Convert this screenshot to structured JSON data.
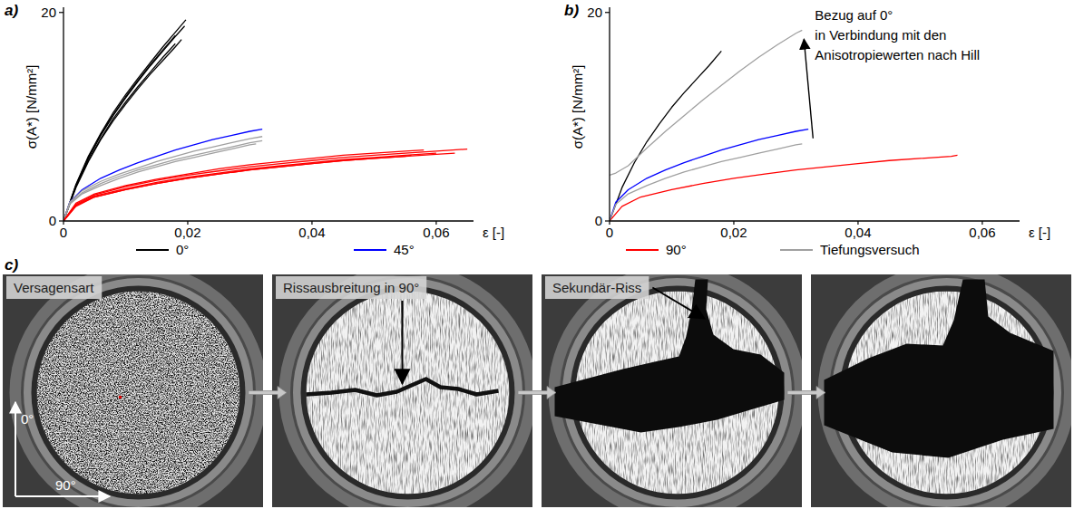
{
  "chart_data": [
    {
      "type": "line",
      "panel_label": "a)",
      "x_label": "ε [-]",
      "y_label": "σ(A*) [N/mm²]",
      "xlim": [
        0,
        0.066
      ],
      "xticks": [
        0,
        {
          "value": 0.02,
          "label": "0,02"
        },
        {
          "value": 0.04,
          "label": "0,04"
        },
        {
          "value": 0.06,
          "label": "0,06"
        }
      ],
      "ylim": [
        0,
        20.5
      ],
      "yticks": [
        0,
        20
      ],
      "series": [
        {
          "name": "0°",
          "color": "#000000",
          "x": [
            0,
            0.002,
            0.004,
            0.006,
            0.008,
            0.01,
            0.012,
            0.014,
            0.016,
            0.018,
            0.0195
          ],
          "values": [
            0,
            3.4,
            6.0,
            8.2,
            10.1,
            11.8,
            13.4,
            14.9,
            16.3,
            17.7,
            18.7
          ]
        },
        {
          "name": "0°",
          "color": "#000000",
          "x": [
            0,
            0.002,
            0.004,
            0.006,
            0.008,
            0.01,
            0.012,
            0.014,
            0.016,
            0.018,
            0.0197
          ],
          "values": [
            0,
            3.5,
            6.2,
            8.4,
            10.4,
            12.1,
            13.7,
            15.2,
            16.7,
            18.1,
            19.3
          ]
        },
        {
          "name": "0°",
          "color": "#000000",
          "x": [
            0,
            0.002,
            0.004,
            0.006,
            0.008,
            0.01,
            0.012,
            0.014,
            0.016,
            0.018
          ],
          "values": [
            0,
            3.3,
            5.8,
            7.9,
            9.8,
            11.4,
            12.9,
            14.3,
            15.7,
            17.0
          ]
        },
        {
          "name": "0°",
          "color": "#000000",
          "x": [
            0,
            0.002,
            0.004,
            0.006,
            0.008,
            0.01,
            0.012,
            0.014,
            0.016,
            0.018,
            0.019
          ],
          "values": [
            0,
            3.2,
            5.7,
            7.8,
            9.6,
            11.2,
            12.7,
            14.1,
            15.4,
            16.7,
            17.4
          ]
        },
        {
          "name": "0°",
          "color": "#000000",
          "x": [
            0,
            0.002,
            0.004,
            0.006,
            0.008,
            0.01,
            0.012,
            0.014,
            0.016,
            0.018
          ],
          "values": [
            0,
            3.4,
            6.1,
            8.3,
            10.2,
            11.9,
            13.5,
            15.0,
            16.4,
            17.8
          ]
        },
        {
          "name": "45°",
          "color": "#0000ff",
          "x": [
            0,
            0.001,
            0.003,
            0.006,
            0.009,
            0.012,
            0.015,
            0.018,
            0.021,
            0.024,
            0.027,
            0.03,
            0.032
          ],
          "values": [
            0,
            1.8,
            3.0,
            4.1,
            4.9,
            5.6,
            6.2,
            6.8,
            7.3,
            7.8,
            8.2,
            8.6,
            8.8
          ]
        },
        {
          "name": "Tiefungsversuch",
          "color": "#a0a0a0",
          "x": [
            0,
            0.001,
            0.003,
            0.006,
            0.009,
            0.012,
            0.015,
            0.018,
            0.021,
            0.024,
            0.027,
            0.03,
            0.032
          ],
          "values": [
            0,
            1.7,
            2.7,
            3.6,
            4.3,
            4.9,
            5.4,
            5.9,
            6.3,
            6.7,
            7.1,
            7.5,
            7.7
          ]
        },
        {
          "name": "Tiefungsversuch",
          "color": "#a0a0a0",
          "x": [
            0,
            0.001,
            0.003,
            0.006,
            0.009,
            0.012,
            0.015,
            0.018,
            0.021,
            0.024,
            0.027,
            0.03,
            0.032
          ],
          "values": [
            0,
            1.8,
            2.9,
            3.8,
            4.5,
            5.1,
            5.7,
            6.2,
            6.7,
            7.1,
            7.5,
            7.9,
            8.1
          ]
        },
        {
          "name": "Tiefungsversuch",
          "color": "#a0a0a0",
          "x": [
            0,
            0.001,
            0.003,
            0.006,
            0.009,
            0.012,
            0.015,
            0.018,
            0.021,
            0.024,
            0.027,
            0.03,
            0.031
          ],
          "values": [
            0,
            1.6,
            2.6,
            3.4,
            4.1,
            4.7,
            5.2,
            5.7,
            6.1,
            6.5,
            6.9,
            7.3,
            7.4
          ]
        },
        {
          "name": "90°",
          "color": "#ff0000",
          "x": [
            0,
            0.002,
            0.005,
            0.01,
            0.015,
            0.02,
            0.025,
            0.03,
            0.035,
            0.04,
            0.045,
            0.05,
            0.055,
            0.06,
            0.065
          ],
          "values": [
            0,
            1.6,
            2.5,
            3.3,
            3.9,
            4.4,
            4.8,
            5.2,
            5.5,
            5.8,
            6.1,
            6.3,
            6.5,
            6.7,
            6.9
          ]
        },
        {
          "name": "90°",
          "color": "#ff0000",
          "x": [
            0,
            0.002,
            0.005,
            0.01,
            0.015,
            0.02,
            0.025,
            0.03,
            0.035,
            0.04,
            0.045,
            0.05,
            0.055,
            0.06
          ],
          "values": [
            0,
            1.5,
            2.4,
            3.1,
            3.7,
            4.2,
            4.6,
            5.0,
            5.3,
            5.6,
            5.9,
            6.1,
            6.3,
            6.5
          ]
        },
        {
          "name": "90°",
          "color": "#ff0000",
          "x": [
            0,
            0.002,
            0.005,
            0.01,
            0.015,
            0.02,
            0.025,
            0.03,
            0.035,
            0.04,
            0.045,
            0.05,
            0.055,
            0.058
          ],
          "values": [
            0,
            1.7,
            2.6,
            3.4,
            4.0,
            4.5,
            5.0,
            5.4,
            5.7,
            6.0,
            6.3,
            6.5,
            6.7,
            6.8
          ]
        },
        {
          "name": "90°",
          "color": "#ff0000",
          "x": [
            0,
            0.002,
            0.005,
            0.01,
            0.015,
            0.02,
            0.025,
            0.03,
            0.035,
            0.04,
            0.045,
            0.05,
            0.055,
            0.06,
            0.063
          ],
          "values": [
            0,
            1.5,
            2.3,
            3.0,
            3.6,
            4.1,
            4.5,
            4.9,
            5.2,
            5.5,
            5.8,
            6.0,
            6.2,
            6.4,
            6.5
          ]
        },
        {
          "name": "90°",
          "color": "#ff0000",
          "x": [
            0,
            0.002,
            0.005,
            0.01,
            0.015,
            0.02,
            0.025,
            0.03,
            0.035,
            0.04,
            0.045,
            0.05,
            0.055,
            0.056
          ],
          "values": [
            0,
            1.4,
            2.3,
            3.0,
            3.6,
            4.1,
            4.5,
            4.9,
            5.2,
            5.5,
            5.8,
            6.0,
            6.2,
            6.3
          ]
        }
      ]
    },
    {
      "type": "line",
      "panel_label": "b)",
      "x_label": "ε [-]",
      "y_label": "σ(A*) [N/mm²]",
      "xlim": [
        0,
        0.066
      ],
      "xticks": [
        0,
        {
          "value": 0.02,
          "label": "0,02"
        },
        {
          "value": 0.04,
          "label": "0,04"
        },
        {
          "value": 0.06,
          "label": "0,06"
        }
      ],
      "ylim": [
        0,
        20.5
      ],
      "yticks": [
        0,
        20
      ],
      "legend": "bottom",
      "annotation": {
        "lines": [
          "Bezug auf 0°",
          "in Verbindung mit den",
          "Anisotropiewerten nach Hill"
        ]
      },
      "series": [
        {
          "name": "0°",
          "color": "#000000",
          "x": [
            0,
            0.002,
            0.004,
            0.006,
            0.008,
            0.01,
            0.012,
            0.014,
            0.016,
            0.018
          ],
          "values": [
            0,
            3.2,
            5.6,
            7.6,
            9.3,
            10.9,
            12.3,
            13.6,
            14.9,
            16.3
          ]
        },
        {
          "name": "45°",
          "color": "#0000ff",
          "x": [
            0,
            0.001,
            0.003,
            0.006,
            0.009,
            0.012,
            0.015,
            0.018,
            0.021,
            0.024,
            0.027,
            0.03,
            0.032
          ],
          "values": [
            0,
            1.8,
            3.0,
            4.1,
            4.9,
            5.6,
            6.2,
            6.8,
            7.3,
            7.8,
            8.2,
            8.6,
            8.8
          ]
        },
        {
          "name": "90°",
          "color": "#ff0000",
          "x": [
            0,
            0.002,
            0.005,
            0.01,
            0.015,
            0.02,
            0.025,
            0.03,
            0.035,
            0.04,
            0.045,
            0.05,
            0.055,
            0.056
          ],
          "values": [
            0,
            1.4,
            2.3,
            3.0,
            3.6,
            4.1,
            4.5,
            4.9,
            5.2,
            5.5,
            5.8,
            6.0,
            6.2,
            6.3
          ]
        },
        {
          "name": "Tiefungsversuch",
          "color": "#a0a0a0",
          "x": [
            0,
            0.001,
            0.003,
            0.006,
            0.009,
            0.012,
            0.015,
            0.018,
            0.021,
            0.024,
            0.027,
            0.03,
            0.031
          ],
          "values": [
            0,
            1.6,
            2.6,
            3.4,
            4.1,
            4.7,
            5.2,
            5.7,
            6.1,
            6.5,
            6.9,
            7.3,
            7.4
          ]
        },
        {
          "name": "Tiefungsversuch",
          "color": "#a0a0a0",
          "x": [
            0,
            0.001,
            0.003,
            0.006,
            0.009,
            0.012,
            0.015,
            0.018,
            0.021,
            0.024,
            0.027,
            0.03,
            0.031
          ],
          "values": [
            4.4,
            4.6,
            5.3,
            7.0,
            8.6,
            10.1,
            11.6,
            13.0,
            14.4,
            15.7,
            16.9,
            18.0,
            18.3
          ]
        }
      ]
    }
  ],
  "panel_c": {
    "label": "c)",
    "photo_labels": [
      "Versagensart",
      "Rissausbreitung in 90°",
      "Sekundär-Riss"
    ],
    "direction_labels": [
      "0°",
      "90°"
    ]
  }
}
